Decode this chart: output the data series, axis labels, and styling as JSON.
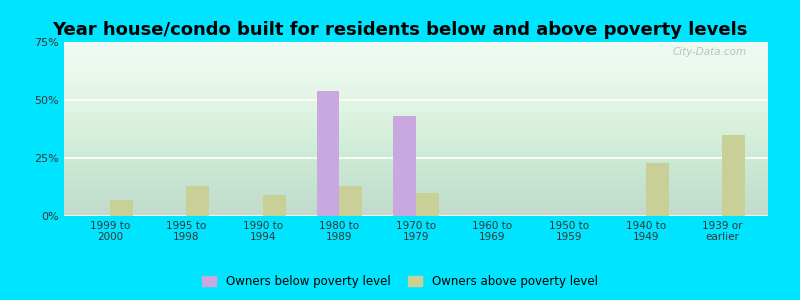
{
  "title": "Year house/condo built for residents below and above poverty levels",
  "categories": [
    "1999 to\n2000",
    "1995 to\n1998",
    "1990 to\n1994",
    "1980 to\n1989",
    "1970 to\n1979",
    "1960 to\n1969",
    "1950 to\n1959",
    "1940 to\n1949",
    "1939 or\nearlier"
  ],
  "below_poverty": [
    0,
    0,
    0,
    54,
    43,
    0,
    0,
    0,
    0
  ],
  "above_poverty": [
    7,
    13,
    9,
    13,
    10,
    0,
    0,
    23,
    35
  ],
  "color_below": "#c9a8e0",
  "color_above": "#c8d098",
  "ylim": [
    0,
    75
  ],
  "yticks": [
    0,
    25,
    50,
    75
  ],
  "yticklabels": [
    "0%",
    "25%",
    "50%",
    "75%"
  ],
  "background_color": "#edfaf2",
  "outer_background": "#00e5ff",
  "legend_below": "Owners below poverty level",
  "legend_above": "Owners above poverty level",
  "title_fontsize": 13,
  "bar_width": 0.3,
  "watermark": "City-Data.com"
}
